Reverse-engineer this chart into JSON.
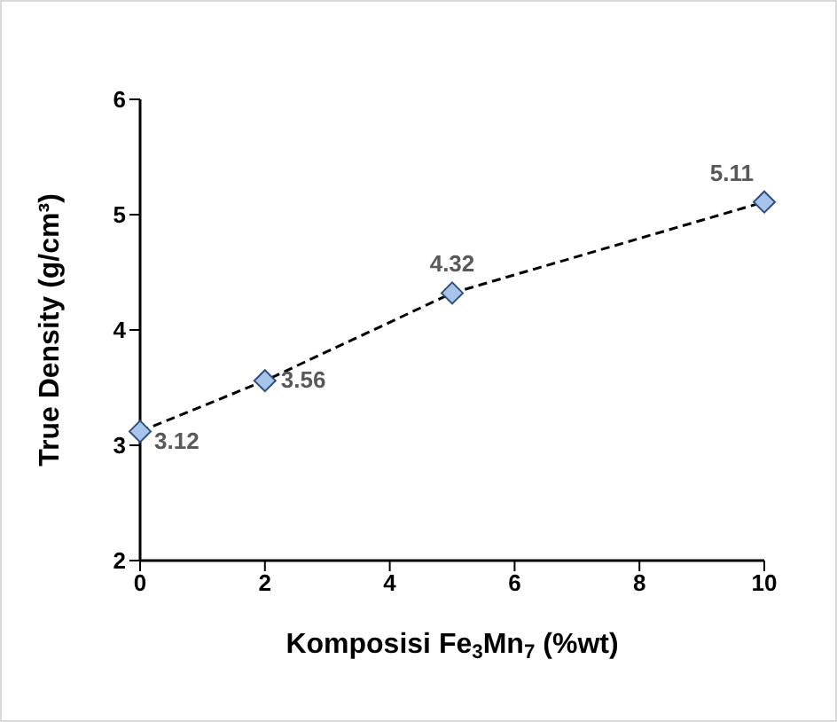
{
  "chart_data": {
    "type": "line",
    "xlabel": "Komposisi Fe$_{3}$Mn$_{7}$ (%wt)",
    "ylabel": "True Density (g/cm³)",
    "x": [
      0,
      2,
      5,
      10
    ],
    "series": [
      {
        "color": "#000000",
        "values": [
          3.12,
          3.56,
          4.32,
          5.11
        ]
      }
    ],
    "xlim": [
      0,
      10
    ],
    "xticks": [
      0,
      2,
      4,
      6,
      8,
      10
    ],
    "ylim": [
      2,
      6
    ],
    "yticks": [
      2,
      3,
      4,
      5,
      6
    ],
    "grid": false,
    "legend": false,
    "marker": "diamond",
    "line_style": "dashed",
    "data_labels": true
  }
}
